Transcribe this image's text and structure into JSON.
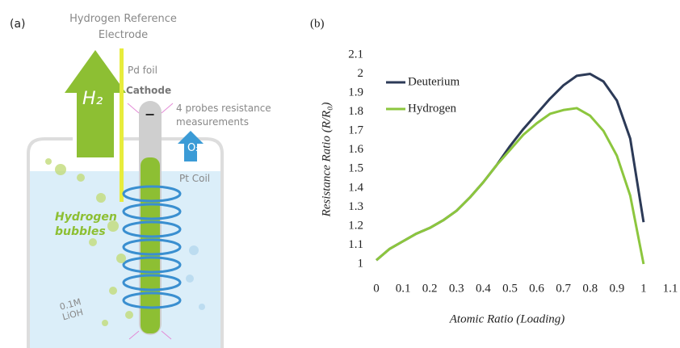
{
  "panel_a": {
    "label": "(a)",
    "reference_electrode": "Hydrogen Reference Electrode",
    "h2": "H₂",
    "pd_foil": "Pd foil",
    "cathode": "Cathode",
    "minus": "−",
    "probes": "4 probes resistance measurements",
    "o2": "O₂",
    "pt_coil": "Pt Coil",
    "bubbles": "Hydrogen bubbles",
    "electrolyte": "0.1M LiOH"
  },
  "chart_data": {
    "type": "line",
    "panel_label": "(b)",
    "x_label": "Atomic Ratio (Loading)",
    "y_label": "Resistance Ratio (R/R₀)",
    "x": [
      0,
      0.05,
      0.1,
      0.15,
      0.2,
      0.25,
      0.3,
      0.35,
      0.4,
      0.45,
      0.5,
      0.55,
      0.6,
      0.65,
      0.7,
      0.75,
      0.8,
      0.85,
      0.9,
      0.95,
      1.0
    ],
    "series": [
      {
        "name": "Deuterium",
        "color": "#2c3a57",
        "values": [
          1.02,
          1.08,
          1.12,
          1.16,
          1.19,
          1.23,
          1.28,
          1.35,
          1.43,
          1.52,
          1.62,
          1.71,
          1.79,
          1.87,
          1.94,
          1.99,
          2.0,
          1.96,
          1.86,
          1.66,
          1.22
        ]
      },
      {
        "name": "Hydrogen",
        "color": "#8cc63e",
        "values": [
          1.02,
          1.08,
          1.12,
          1.16,
          1.19,
          1.23,
          1.28,
          1.35,
          1.43,
          1.52,
          1.6,
          1.68,
          1.74,
          1.79,
          1.81,
          1.82,
          1.78,
          1.7,
          1.57,
          1.36,
          1.0
        ]
      }
    ],
    "xlim": [
      0,
      1.1
    ],
    "xticks": [
      0,
      0.1,
      0.2,
      0.3,
      0.4,
      0.5,
      0.6,
      0.7,
      0.8,
      0.9,
      1,
      1.1
    ],
    "ylim": [
      1,
      2.1
    ],
    "yticks": [
      1,
      1.1,
      1.2,
      1.3,
      1.4,
      1.5,
      1.6,
      1.7,
      1.8,
      1.9,
      2,
      2.1
    ],
    "legend": "upper left",
    "grid": false
  }
}
